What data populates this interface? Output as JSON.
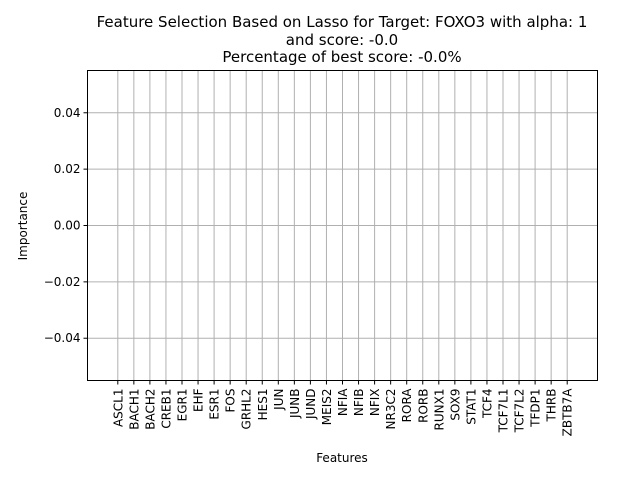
{
  "chart_data": {
    "type": "bar",
    "title_lines": [
      "Feature Selection Based on Lasso for Target: FOXO3 with alpha: 1",
      "and score: -0.0",
      "Percentage of best score: -0.0%"
    ],
    "xlabel": "Features",
    "ylabel": "Importance",
    "categories": [
      "ASCL1",
      "BACH1",
      "BACH2",
      "CREB1",
      "EGR1",
      "EHF",
      "ESR1",
      "FOS",
      "GRHL2",
      "HES1",
      "JUN",
      "JUNB",
      "JUND",
      "MEIS2",
      "NFIA",
      "NFIB",
      "NFIX",
      "NR3C2",
      "RORA",
      "RORB",
      "RUNX1",
      "SOX9",
      "STAT1",
      "TCF4",
      "TCF7L1",
      "TCF7L2",
      "TFDP1",
      "THRB",
      "ZBTB7A"
    ],
    "values": [
      0,
      0,
      0,
      0,
      0,
      0,
      0,
      0,
      0,
      0,
      0,
      0,
      0,
      0,
      0,
      0,
      0,
      0,
      0,
      0,
      0,
      0,
      0,
      0,
      0,
      0,
      0,
      0,
      0
    ],
    "ylim": [
      -0.055,
      0.055
    ],
    "yticks": [
      "0.04",
      "0.02",
      "0.00",
      "−0.02",
      "−0.04"
    ],
    "ytick_values": [
      0.04,
      0.02,
      0.0,
      -0.02,
      -0.04
    ],
    "grid": true,
    "bar_color": "#1f77b4"
  }
}
